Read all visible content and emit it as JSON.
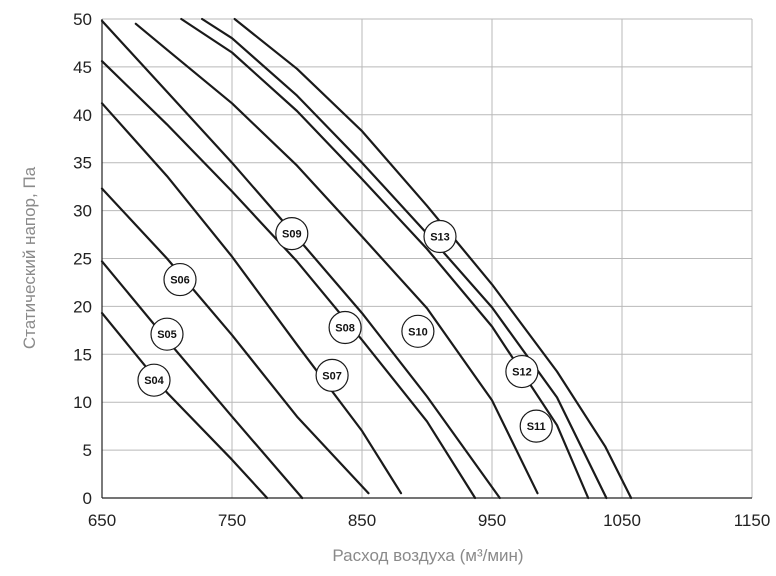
{
  "chart_data": {
    "type": "line",
    "title": "",
    "xlabel": "Расход воздуха (м³/мин)",
    "ylabel": "Статический напор, Па",
    "xlim": [
      650,
      1150
    ],
    "ylim": [
      0,
      50
    ],
    "xticks": [
      "650",
      "750",
      "850",
      "950",
      "1050",
      "1150"
    ],
    "yticks": [
      "0",
      "5",
      "10",
      "15",
      "20",
      "25",
      "30",
      "35",
      "40",
      "45",
      "50"
    ],
    "grid": true,
    "legend": "none",
    "colors": {
      "line": "#1a1a1a",
      "grid": "#b9b9b9",
      "axis_title": "#8a8a8a"
    },
    "series": [
      {
        "name": "S04",
        "x": [
          650,
          700,
          750,
          777
        ],
        "y": [
          19.3,
          11.0,
          4.0,
          0
        ],
        "label_at": [
          690,
          12.3
        ]
      },
      {
        "name": "S05",
        "x": [
          650,
          700,
          750,
          804
        ],
        "y": [
          24.7,
          16.5,
          8.5,
          0
        ],
        "label_at": [
          700,
          17.1
        ]
      },
      {
        "name": "S06",
        "x": [
          650,
          700,
          750,
          800,
          855
        ],
        "y": [
          32.3,
          25.0,
          17.0,
          8.5,
          0.5
        ],
        "label_at": [
          710,
          22.8
        ]
      },
      {
        "name": "S07",
        "x": [
          650,
          700,
          750,
          800,
          850,
          880
        ],
        "y": [
          41.2,
          33.6,
          25.2,
          16.0,
          7.0,
          0.5
        ],
        "label_at": [
          827,
          12.8
        ]
      },
      {
        "name": "S08",
        "x": [
          650,
          700,
          750,
          800,
          850,
          900,
          937
        ],
        "y": [
          45.6,
          39.0,
          32.0,
          24.7,
          16.5,
          8.0,
          0
        ],
        "label_at": [
          837,
          17.8
        ]
      },
      {
        "name": "S09",
        "x": [
          650,
          700,
          750,
          800,
          850,
          900,
          956
        ],
        "y": [
          49.8,
          42.4,
          35.0,
          27.2,
          19.3,
          10.6,
          0
        ],
        "label_at": [
          796,
          27.6
        ]
      },
      {
        "name": "S10",
        "x": [
          676,
          700,
          750,
          800,
          850,
          900,
          950,
          985
        ],
        "y": [
          49.5,
          46.8,
          41.2,
          34.7,
          27.3,
          19.8,
          10.2,
          0.5
        ],
        "label_at": [
          893,
          17.4
        ]
      },
      {
        "name": "S11",
        "x": [
          711,
          750,
          800,
          850,
          900,
          950,
          1000,
          1024
        ],
        "y": [
          50,
          46.5,
          40.4,
          33.3,
          26.0,
          17.9,
          7.6,
          0
        ],
        "label_at": [
          984,
          7.5
        ]
      },
      {
        "name": "S12",
        "x": [
          727,
          750,
          800,
          850,
          900,
          950,
          1000,
          1038
        ],
        "y": [
          50,
          48.0,
          42.0,
          35.0,
          27.6,
          19.9,
          10.5,
          0
        ],
        "label_at": [
          973,
          13.2
        ]
      },
      {
        "name": "S13",
        "x": [
          752,
          800,
          850,
          900,
          950,
          1000,
          1037,
          1057
        ],
        "y": [
          50,
          44.8,
          38.3,
          30.5,
          22.3,
          13.2,
          5.4,
          0
        ],
        "label_at": [
          910,
          27.3
        ]
      }
    ]
  }
}
